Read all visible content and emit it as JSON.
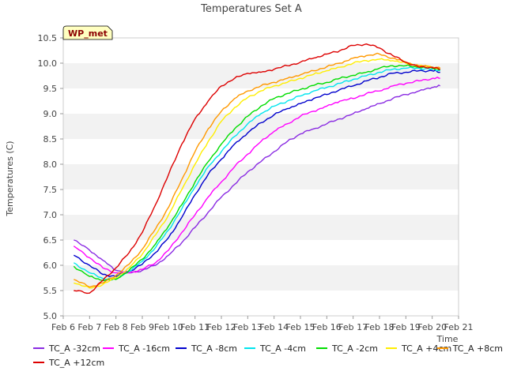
{
  "chart_data": {
    "type": "line",
    "title": "Temperatures Set A",
    "xlabel": "Time",
    "ylabel": "Temperatures (C)",
    "badge": "WP_met",
    "xlim": [
      6,
      21
    ],
    "ylim": [
      5.0,
      10.5
    ],
    "x_ticks": [
      6,
      7,
      8,
      9,
      10,
      11,
      12,
      13,
      14,
      15,
      16,
      17,
      18,
      19,
      20,
      21
    ],
    "x_tick_labels": [
      "Feb 6",
      "Feb 7",
      "Feb 8",
      "Feb 9",
      "Feb 10",
      "Feb 11",
      "Feb 12",
      "Feb 13",
      "Feb 14",
      "Feb 15",
      "Feb 16",
      "Feb 17",
      "Feb 18",
      "Feb 19",
      "Feb 20",
      "Feb 21"
    ],
    "y_ticks": [
      5.0,
      5.5,
      6.0,
      6.5,
      7.0,
      7.5,
      8.0,
      8.5,
      9.0,
      9.5,
      10.0,
      10.5
    ],
    "y_tick_labels": [
      "5.0",
      "5.5",
      "6.0",
      "6.5",
      "7.0",
      "7.5",
      "8.0",
      "8.5",
      "9.0",
      "9.5",
      "10.0",
      "10.5"
    ],
    "grid": "horizontal alternating bands",
    "legend_position": "bottom",
    "x": [
      6.4,
      7.0,
      7.5,
      8.0,
      8.5,
      9.0,
      9.5,
      10.0,
      10.5,
      11.0,
      11.5,
      12.0,
      12.5,
      13.0,
      13.5,
      14.0,
      14.5,
      15.0,
      15.5,
      16.0,
      16.5,
      17.0,
      17.5,
      18.0,
      18.5,
      19.0,
      19.5,
      20.0,
      20.3
    ],
    "series": [
      {
        "name": "TC_A -32cm",
        "color": "#8a2be2",
        "values": [
          6.5,
          6.3,
          6.1,
          5.9,
          5.85,
          5.9,
          6.0,
          6.2,
          6.45,
          6.75,
          7.05,
          7.35,
          7.6,
          7.85,
          8.05,
          8.25,
          8.45,
          8.6,
          8.7,
          8.8,
          8.9,
          9.0,
          9.1,
          9.2,
          9.3,
          9.38,
          9.45,
          9.52,
          9.55
        ]
      },
      {
        "name": "TC_A -16cm",
        "color": "#ff00ff",
        "values": [
          6.38,
          6.15,
          5.95,
          5.85,
          5.85,
          5.92,
          6.05,
          6.3,
          6.65,
          7.0,
          7.35,
          7.65,
          7.95,
          8.2,
          8.45,
          8.65,
          8.8,
          8.95,
          9.05,
          9.15,
          9.25,
          9.3,
          9.4,
          9.45,
          9.55,
          9.6,
          9.65,
          9.7,
          9.7
        ]
      },
      {
        "name": "TC_A -8cm",
        "color": "#0000cd",
        "values": [
          6.2,
          6.0,
          5.82,
          5.78,
          5.88,
          6.02,
          6.25,
          6.55,
          6.95,
          7.4,
          7.8,
          8.1,
          8.4,
          8.62,
          8.82,
          8.98,
          9.1,
          9.2,
          9.3,
          9.38,
          9.48,
          9.55,
          9.65,
          9.72,
          9.8,
          9.82,
          9.85,
          9.85,
          9.82
        ]
      },
      {
        "name": "TC_A -4cm",
        "color": "#00e5ee",
        "values": [
          6.05,
          5.85,
          5.74,
          5.74,
          5.88,
          6.08,
          6.35,
          6.7,
          7.12,
          7.55,
          7.95,
          8.25,
          8.55,
          8.8,
          9.0,
          9.15,
          9.25,
          9.35,
          9.45,
          9.52,
          9.6,
          9.68,
          9.75,
          9.82,
          9.88,
          9.9,
          9.9,
          9.88,
          9.85
        ]
      },
      {
        "name": "TC_A -2cm",
        "color": "#00dd00",
        "values": [
          5.98,
          5.78,
          5.7,
          5.72,
          5.9,
          6.12,
          6.42,
          6.78,
          7.2,
          7.65,
          8.05,
          8.4,
          8.7,
          8.95,
          9.15,
          9.3,
          9.4,
          9.48,
          9.56,
          9.62,
          9.7,
          9.76,
          9.82,
          9.9,
          9.95,
          9.95,
          9.92,
          9.9,
          9.88
        ]
      },
      {
        "name": "TC_A +4cm",
        "color": "#ffee00",
        "values": [
          5.65,
          5.55,
          5.62,
          5.75,
          5.95,
          6.22,
          6.6,
          7.0,
          7.5,
          8.0,
          8.45,
          8.85,
          9.12,
          9.32,
          9.45,
          9.55,
          9.62,
          9.7,
          9.78,
          9.85,
          9.92,
          10.0,
          10.05,
          10.08,
          10.05,
          10.0,
          9.95,
          9.92,
          9.9
        ]
      },
      {
        "name": "TC_A +8cm",
        "color": "#ff9900",
        "values": [
          5.72,
          5.57,
          5.65,
          5.8,
          6.02,
          6.32,
          6.72,
          7.15,
          7.7,
          8.25,
          8.7,
          9.05,
          9.3,
          9.45,
          9.55,
          9.62,
          9.7,
          9.77,
          9.85,
          9.93,
          10.0,
          10.1,
          10.15,
          10.18,
          10.1,
          10.02,
          9.95,
          9.92,
          9.9
        ]
      },
      {
        "name": "TC_A +12cm",
        "color": "#dd0000",
        "values": [
          5.5,
          5.45,
          5.7,
          5.95,
          6.25,
          6.65,
          7.2,
          7.8,
          8.4,
          8.9,
          9.25,
          9.55,
          9.7,
          9.8,
          9.82,
          9.88,
          9.95,
          10.02,
          10.1,
          10.18,
          10.25,
          10.35,
          10.38,
          10.3,
          10.15,
          10.02,
          9.92,
          9.92,
          9.88
        ]
      }
    ]
  }
}
